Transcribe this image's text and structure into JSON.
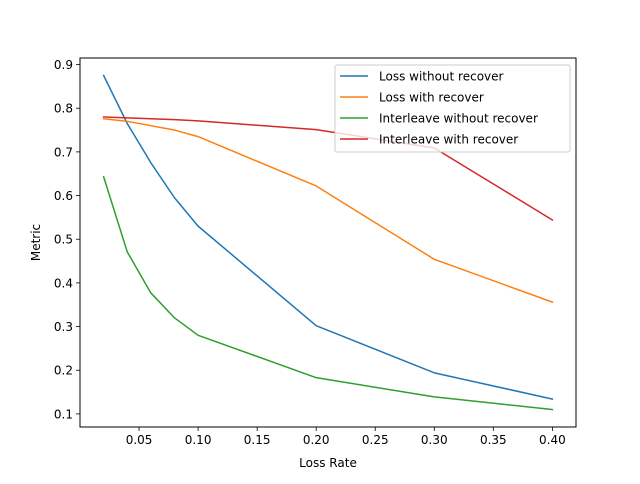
{
  "chart_data": {
    "type": "line",
    "title": "",
    "xlabel": "Loss Rate",
    "ylabel": "Metric",
    "xlim": [
      0.0,
      0.42
    ],
    "ylim": [
      0.07,
      0.915
    ],
    "x_ticks": [
      0.05,
      0.1,
      0.15,
      0.2,
      0.25,
      0.3,
      0.35,
      0.4
    ],
    "x_tick_labels": [
      "0.05",
      "0.10",
      "0.15",
      "0.20",
      "0.25",
      "0.30",
      "0.35",
      "0.40"
    ],
    "y_ticks": [
      0.1,
      0.2,
      0.3,
      0.4,
      0.5,
      0.6,
      0.7,
      0.8,
      0.9
    ],
    "y_tick_labels": [
      "0.1",
      "0.2",
      "0.3",
      "0.4",
      "0.5",
      "0.6",
      "0.7",
      "0.8",
      "0.9"
    ],
    "grid": false,
    "legend_position": "top-right",
    "series": [
      {
        "name": "Loss without recover",
        "color": "#1f77b4",
        "x": [
          0.02,
          0.04,
          0.06,
          0.08,
          0.1,
          0.2,
          0.3,
          0.4
        ],
        "y": [
          0.875,
          0.765,
          0.675,
          0.595,
          0.53,
          0.302,
          0.194,
          0.134
        ]
      },
      {
        "name": "Loss with recover",
        "color": "#ff7f0e",
        "x": [
          0.02,
          0.04,
          0.06,
          0.08,
          0.1,
          0.2,
          0.3,
          0.4
        ],
        "y": [
          0.776,
          0.77,
          0.76,
          0.75,
          0.735,
          0.622,
          0.454,
          0.356
        ]
      },
      {
        "name": "Interleave without recover",
        "color": "#2ca02c",
        "x": [
          0.02,
          0.04,
          0.06,
          0.08,
          0.1,
          0.2,
          0.3,
          0.4
        ],
        "y": [
          0.643,
          0.471,
          0.377,
          0.32,
          0.28,
          0.183,
          0.139,
          0.11
        ]
      },
      {
        "name": "Interleave with recover",
        "color": "#d62728",
        "x": [
          0.02,
          0.04,
          0.06,
          0.08,
          0.1,
          0.2,
          0.3,
          0.4
        ],
        "y": [
          0.78,
          0.778,
          0.776,
          0.774,
          0.771,
          0.751,
          0.709,
          0.544
        ]
      }
    ]
  }
}
